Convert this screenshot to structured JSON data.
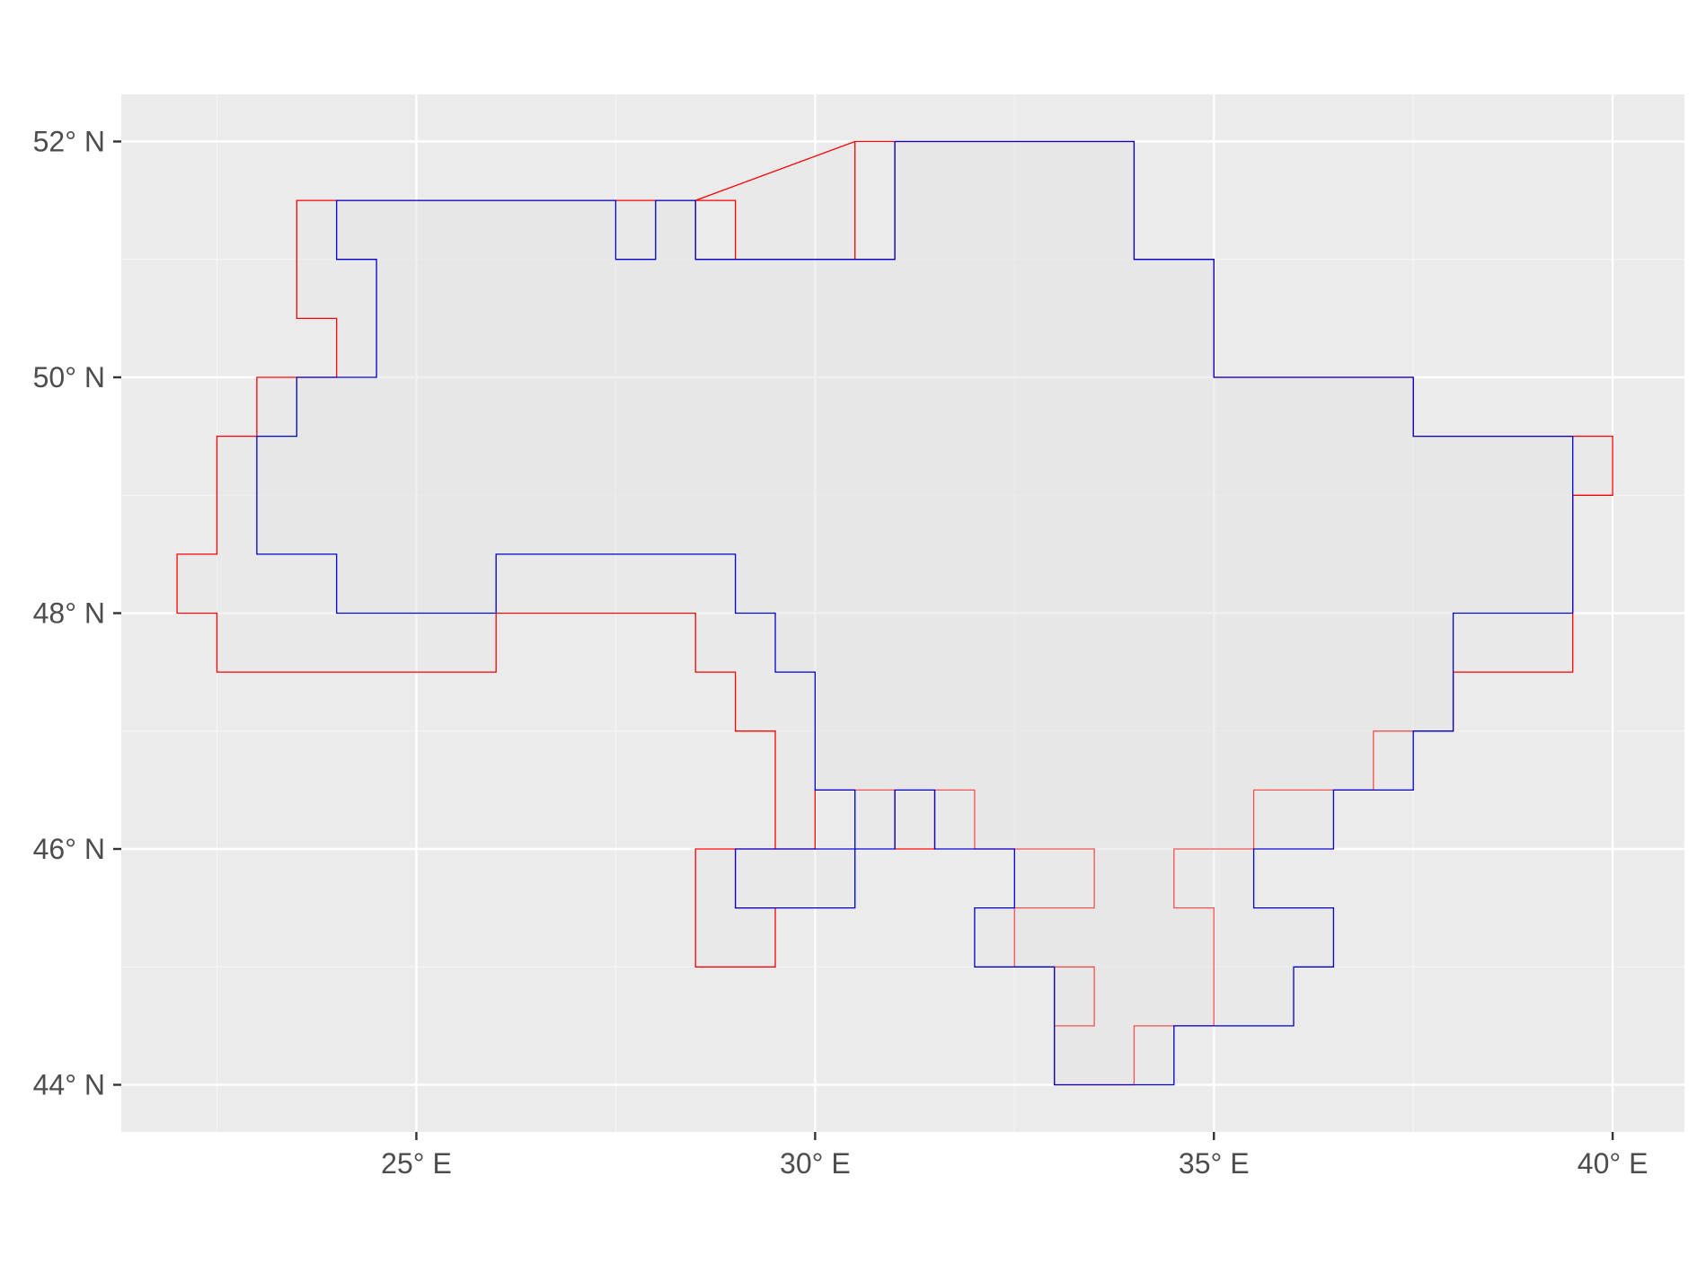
{
  "chart_data": {
    "type": "map",
    "title": "",
    "xlabel": "",
    "ylabel": "",
    "xlim": [
      21.3,
      40.9
    ],
    "ylim": [
      43.6,
      52.4
    ],
    "grid": true,
    "legend": "none",
    "x_ticks": [
      {
        "value": 25,
        "label": "25° E"
      },
      {
        "value": 30,
        "label": "30° E"
      },
      {
        "value": 35,
        "label": "35° E"
      },
      {
        "value": 40,
        "label": "40° E"
      }
    ],
    "y_ticks": [
      {
        "value": 52,
        "label": "52° N"
      },
      {
        "value": 50,
        "label": "50° N"
      },
      {
        "value": 48,
        "label": "48° N"
      },
      {
        "value": 46,
        "label": "46° N"
      },
      {
        "value": 44,
        "label": "44° N"
      }
    ],
    "series": [
      {
        "color": "#ff0000",
        "fill": "#e5e5e5",
        "outline": [
          [
            30.5,
            52
          ],
          [
            31,
            52
          ],
          [
            31,
            51
          ],
          [
            28.5,
            51
          ],
          [
            28.5,
            51.5
          ],
          [
            27.5,
            51.5
          ],
          [
            27.5,
            51.5
          ],
          [
            23.5,
            51.5
          ],
          [
            23.5,
            50.5
          ],
          [
            24,
            50.5
          ],
          [
            24,
            50
          ],
          [
            23,
            50
          ],
          [
            23,
            49.5
          ],
          [
            22.5,
            49.5
          ],
          [
            22.5,
            48.5
          ],
          [
            22,
            48.5
          ],
          [
            22,
            48
          ],
          [
            22.5,
            48
          ],
          [
            22.5,
            47.5
          ],
          [
            26,
            47.5
          ],
          [
            26,
            48
          ],
          [
            28.5,
            48
          ],
          [
            28.5,
            47.5
          ],
          [
            29,
            47.5
          ],
          [
            29,
            47
          ],
          [
            29.5,
            47
          ],
          [
            29.5,
            46
          ],
          [
            29,
            46
          ],
          [
            29,
            45.5
          ],
          [
            29.5,
            45.5
          ],
          [
            29.5,
            45
          ],
          [
            28.5,
            45
          ],
          [
            28.5,
            46
          ],
          [
            30,
            46
          ],
          [
            30,
            46.5
          ],
          [
            31,
            46.5
          ],
          [
            31,
            46
          ],
          [
            31.5,
            46
          ],
          [
            31.5,
            46.5
          ],
          [
            32,
            46.5
          ],
          [
            32,
            46
          ],
          [
            33.5,
            46
          ],
          [
            33.5,
            45.5
          ],
          [
            32.5,
            45.5
          ],
          [
            32.5,
            45
          ],
          [
            33,
            45
          ],
          [
            33,
            44.5
          ],
          [
            33.5,
            44.5
          ],
          [
            33.5,
            45
          ],
          [
            33,
            45
          ],
          [
            33,
            44
          ],
          [
            34,
            44
          ],
          [
            34,
            44.5
          ],
          [
            35,
            44.5
          ],
          [
            35,
            45.5
          ],
          [
            34.5,
            45.5
          ],
          [
            34.5,
            46
          ],
          [
            35.5,
            46
          ],
          [
            35.5,
            46.5
          ],
          [
            36.5,
            46.5
          ],
          [
            36.5,
            46.5
          ],
          [
            37,
            46.5
          ],
          [
            37,
            47
          ],
          [
            37.5,
            47
          ],
          [
            37.5,
            47
          ],
          [
            38,
            47
          ],
          [
            38,
            47.5
          ],
          [
            39.5,
            47.5
          ],
          [
            39.5,
            49
          ],
          [
            40,
            49
          ],
          [
            40,
            49.5
          ],
          [
            39.5,
            49.5
          ],
          [
            37.5,
            49.5
          ],
          [
            37.5,
            50
          ],
          [
            35,
            50
          ],
          [
            35,
            51
          ],
          [
            34,
            51
          ],
          [
            34,
            52
          ],
          [
            31,
            52
          ],
          [
            30.5,
            52
          ],
          [
            30.5,
            51
          ],
          [
            29,
            51
          ],
          [
            29,
            51.5
          ],
          [
            28.5,
            51.5
          ]
        ]
      },
      {
        "color": "#0000cd",
        "fill": "#e5e5e5",
        "outline": [
          [
            24,
            51.5
          ],
          [
            27.5,
            51.5
          ],
          [
            27.5,
            51
          ],
          [
            28,
            51
          ],
          [
            28,
            51.5
          ],
          [
            28.5,
            51.5
          ],
          [
            28.5,
            51
          ],
          [
            31,
            51
          ],
          [
            31,
            52
          ],
          [
            34,
            52
          ],
          [
            34,
            51
          ],
          [
            35,
            51
          ],
          [
            35,
            50
          ],
          [
            37.5,
            50
          ],
          [
            37.5,
            49.5
          ],
          [
            39.5,
            49.5
          ],
          [
            39.5,
            48
          ],
          [
            38,
            48
          ],
          [
            38,
            47
          ],
          [
            37.5,
            47
          ],
          [
            37.5,
            46.5
          ],
          [
            36.5,
            46.5
          ],
          [
            36.5,
            46
          ],
          [
            35.5,
            46
          ],
          [
            35.5,
            45.5
          ],
          [
            36.5,
            45.5
          ],
          [
            36.5,
            45
          ],
          [
            36,
            45
          ],
          [
            36,
            44.5
          ],
          [
            34.5,
            44.5
          ],
          [
            34.5,
            44
          ],
          [
            33,
            44
          ],
          [
            33,
            45
          ],
          [
            32,
            45
          ],
          [
            32,
            45.5
          ],
          [
            32.5,
            45.5
          ],
          [
            32.5,
            46
          ],
          [
            31.5,
            46
          ],
          [
            31.5,
            46.5
          ],
          [
            31,
            46.5
          ],
          [
            31,
            46
          ],
          [
            30.5,
            46
          ],
          [
            30.5,
            45.5
          ],
          [
            29,
            45.5
          ],
          [
            29,
            46
          ],
          [
            30.5,
            46
          ],
          [
            30.5,
            46.5
          ],
          [
            30,
            46.5
          ],
          [
            30,
            47.5
          ],
          [
            29.5,
            47.5
          ],
          [
            29.5,
            48
          ],
          [
            29,
            48
          ],
          [
            29,
            48.5
          ],
          [
            26,
            48.5
          ],
          [
            26,
            48
          ],
          [
            24,
            48
          ],
          [
            24,
            48.5
          ],
          [
            23,
            48.5
          ],
          [
            23,
            49.5
          ],
          [
            23.5,
            49.5
          ],
          [
            23.5,
            50
          ],
          [
            24.5,
            50
          ],
          [
            24.5,
            51
          ],
          [
            24,
            51
          ],
          [
            24,
            51.5
          ]
        ]
      }
    ]
  }
}
